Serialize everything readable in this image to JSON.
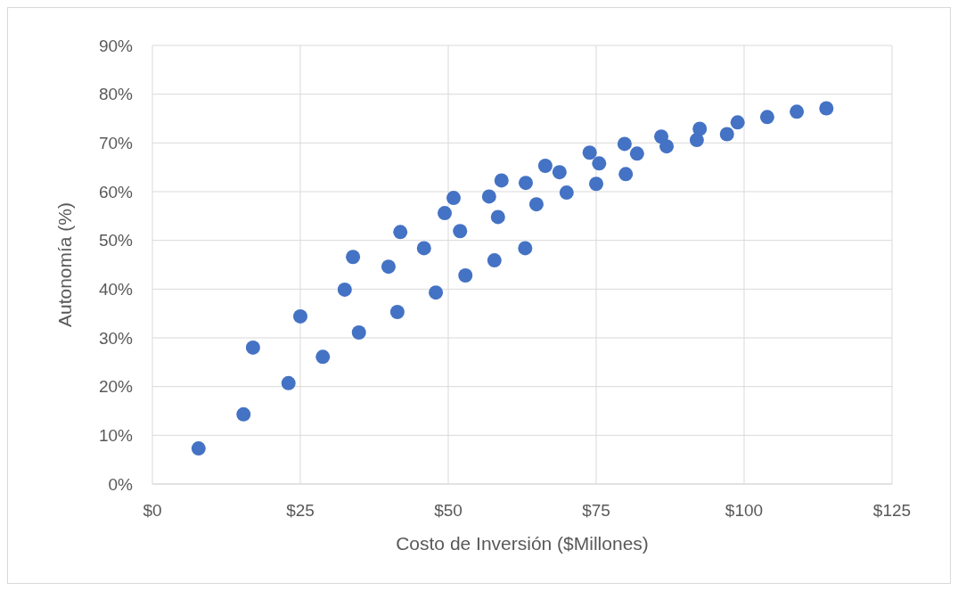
{
  "chart_data": {
    "type": "scatter",
    "xlabel": "Costo de Inversión ($Millones)",
    "ylabel": "Autonomía (%)",
    "x": [
      7.8,
      15.4,
      17.0,
      23.0,
      25.0,
      28.8,
      32.5,
      33.9,
      34.9,
      39.9,
      41.4,
      41.9,
      45.9,
      47.9,
      49.4,
      50.9,
      52.0,
      52.9,
      56.9,
      57.8,
      58.4,
      59.0,
      63.0,
      63.1,
      64.9,
      66.4,
      68.8,
      70.0,
      73.9,
      75.0,
      75.5,
      79.8,
      80.0,
      81.9,
      86.0,
      86.9,
      92.0,
      92.5,
      97.1,
      98.9,
      103.9,
      108.9,
      113.9
    ],
    "series": [
      {
        "color": "#4472c4",
        "values": [
          7.3,
          14.3,
          28.0,
          20.7,
          34.4,
          26.1,
          39.9,
          46.6,
          31.1,
          44.6,
          35.3,
          51.7,
          48.4,
          39.3,
          55.6,
          58.7,
          51.9,
          42.8,
          59.0,
          45.9,
          54.8,
          62.3,
          48.4,
          61.8,
          57.4,
          65.3,
          64.0,
          59.8,
          68.0,
          61.6,
          65.8,
          69.8,
          63.6,
          67.8,
          71.3,
          69.3,
          70.6,
          72.9,
          71.8,
          74.2,
          75.3,
          76.4,
          77.1
        ]
      }
    ],
    "xlim": [
      0,
      125
    ],
    "xticks": [
      {
        "value": 0,
        "label": "$0"
      },
      {
        "value": 25,
        "label": "$25"
      },
      {
        "value": 50,
        "label": "$50"
      },
      {
        "value": 75,
        "label": "$75"
      },
      {
        "value": 100,
        "label": "$100"
      },
      {
        "value": 125,
        "label": "$125"
      }
    ],
    "ylim": [
      0,
      90
    ],
    "yticks": [
      {
        "value": 0,
        "label": "0%"
      },
      {
        "value": 10,
        "label": "10%"
      },
      {
        "value": 20,
        "label": "20%"
      },
      {
        "value": 30,
        "label": "30%"
      },
      {
        "value": 40,
        "label": "40%"
      },
      {
        "value": 50,
        "label": "50%"
      },
      {
        "value": 60,
        "label": "60%"
      },
      {
        "value": 70,
        "label": "70%"
      },
      {
        "value": 80,
        "label": "80%"
      },
      {
        "value": 90,
        "label": "90%"
      }
    ],
    "grid": true,
    "marker": "circle"
  }
}
